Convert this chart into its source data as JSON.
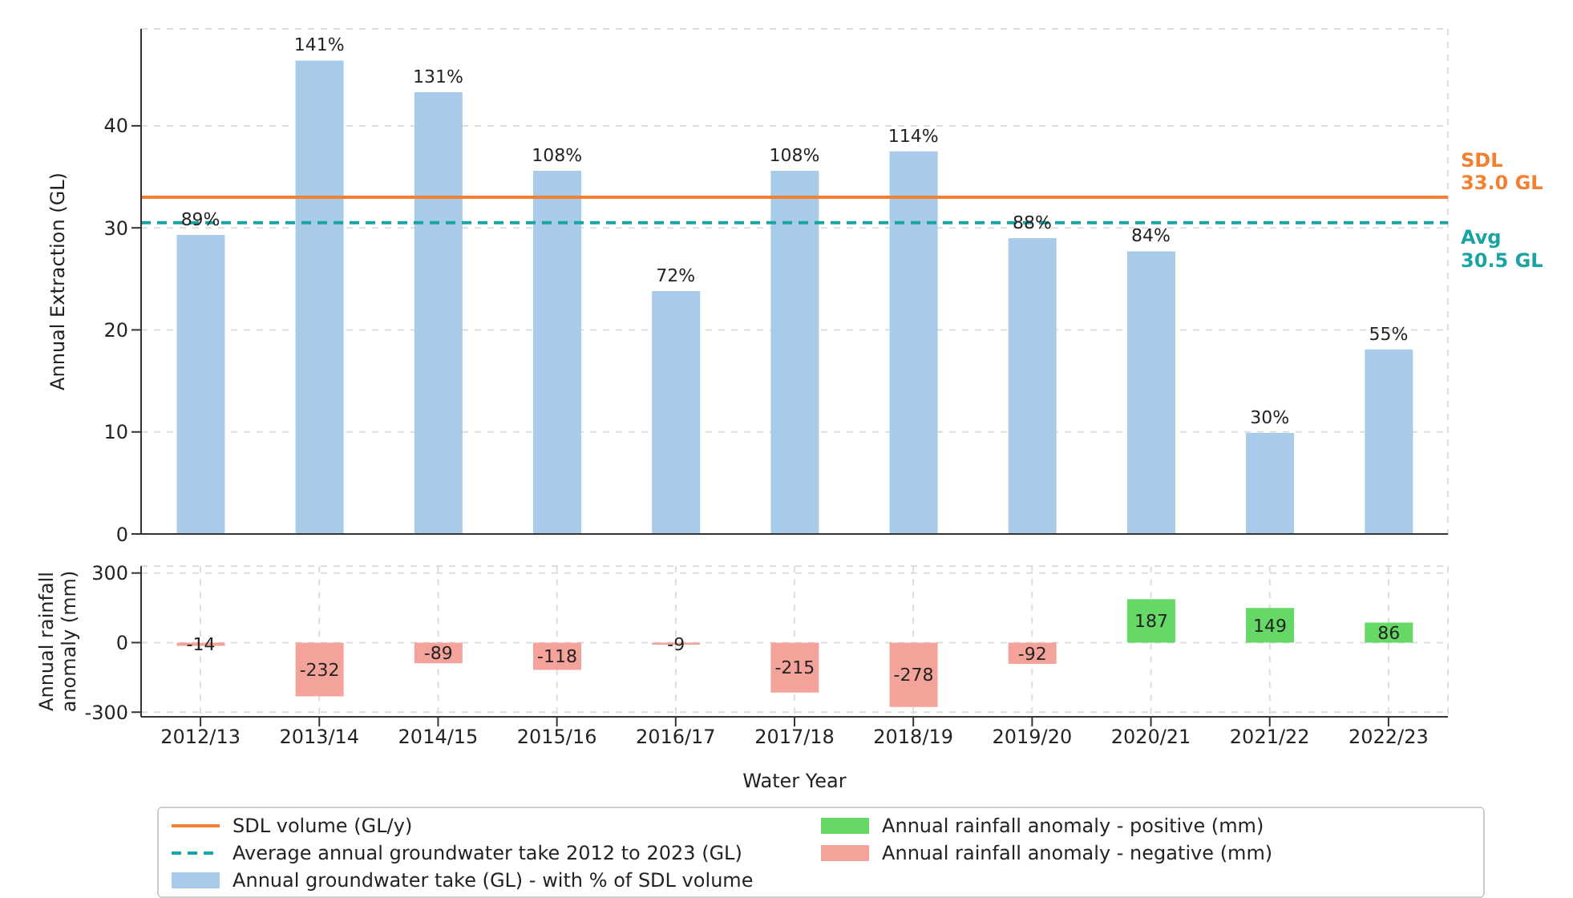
{
  "chart_data": [
    {
      "type": "bar",
      "categories": [
        "2012/13",
        "2013/14",
        "2014/15",
        "2015/16",
        "2016/17",
        "2017/18",
        "2018/19",
        "2019/20",
        "2020/21",
        "2021/22",
        "2022/23"
      ],
      "series": [
        {
          "name": "Annual groundwater take (GL) - with % of SDL volume",
          "color": "#a9cbea",
          "values": [
            29.3,
            46.4,
            43.3,
            35.6,
            23.8,
            35.6,
            37.5,
            29.0,
            27.7,
            9.9,
            18.1
          ]
        }
      ],
      "ylabel": "Annual Extraction (GL)",
      "ylim": [
        0,
        49.5
      ],
      "yticks": [
        0,
        10,
        20,
        30,
        40
      ],
      "grid": true,
      "tick_labels": "y",
      "legend": "bottom",
      "ref_lines": [
        {
          "axis": "y",
          "value": 33.0,
          "label": "SDL volume (GL/y)",
          "color": "#f28030",
          "line_style": "solid"
        },
        {
          "axis": "y",
          "value": 30.5,
          "label": "Average annual groundwater take 2012 to 2023 (GL)",
          "color": "#1aa3a3",
          "line_style": "dashed"
        }
      ],
      "annotations": [
        "SDL\n33.0 GL",
        "Avg\n30.5 GL",
        {
          "text": "89%",
          "x": "2012/13",
          "y": 29.3
        },
        {
          "text": "141%",
          "x": "2013/14",
          "y": 46.4
        },
        {
          "text": "131%",
          "x": "2014/15",
          "y": 43.3
        },
        {
          "text": "108%",
          "x": "2015/16",
          "y": 35.6
        },
        {
          "text": "72%",
          "x": "2016/17",
          "y": 23.8
        },
        {
          "text": "108%",
          "x": "2017/18",
          "y": 35.6
        },
        {
          "text": "114%",
          "x": "2018/19",
          "y": 37.5
        },
        {
          "text": "88%",
          "x": "2019/20",
          "y": 29.0
        },
        {
          "text": "84%",
          "x": "2020/21",
          "y": 27.7
        },
        {
          "text": "30%",
          "x": "2021/22",
          "y": 9.9
        },
        {
          "text": "55%",
          "x": "2022/23",
          "y": 18.1
        }
      ]
    },
    {
      "type": "bar",
      "categories": [
        "2012/13",
        "2013/14",
        "2014/15",
        "2015/16",
        "2016/17",
        "2017/18",
        "2018/19",
        "2019/20",
        "2020/21",
        "2021/22",
        "2022/23"
      ],
      "series": [
        {
          "name": "Annual rainfall anomaly - positive (mm)",
          "color": "#66d866",
          "values": [
            null,
            null,
            null,
            null,
            null,
            null,
            null,
            null,
            187,
            149,
            86
          ]
        },
        {
          "name": "Annual rainfall anomaly - negative (mm)",
          "color": "#f4a39b",
          "values": [
            -14,
            -232,
            -89,
            -118,
            -9,
            -215,
            -278,
            -92,
            null,
            null,
            null
          ]
        }
      ],
      "stacked": true,
      "data_labels": true,
      "xlabel": "Water Year",
      "ylabel": "Annual rainfall\nanomaly (mm)",
      "ylim": [
        -320,
        330
      ],
      "yticks": [
        -300,
        0,
        300
      ],
      "grid": true,
      "legend": "bottom"
    }
  ]
}
